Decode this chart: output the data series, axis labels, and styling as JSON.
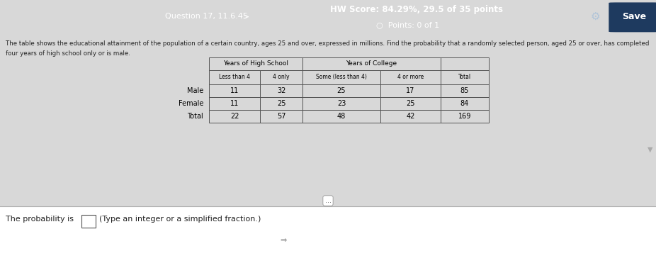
{
  "hw_score_text": "HW Score: 84.29%, 29.5 of 35 points",
  "points_text": "Points: 0 of 1",
  "question_text": "Question 17, 11.6.45",
  "save_text": "Save",
  "main_text_line1": "The table shows the educational attainment of the population of a certain country, ages 25 and over, expressed in millions. Find the probability that a randomly selected person, aged 25 or over, has completed",
  "main_text_line2": "four years of high school only or is male.",
  "prob_text": "The probability is",
  "input_hint": "(Type an integer or a simplified fraction.)",
  "col_headers_level1": [
    "Years of High School",
    "Years of College"
  ],
  "col_headers_level2": [
    "Less than 4",
    "4 only",
    "Some (less than 4)",
    "4 or more",
    "Total"
  ],
  "row_labels": [
    "Male",
    "Female",
    "Total"
  ],
  "table_data": [
    [
      11,
      32,
      25,
      17,
      85
    ],
    [
      11,
      25,
      23,
      25,
      84
    ],
    [
      22,
      57,
      48,
      42,
      169
    ]
  ],
  "top_bar_color": "#3d6b9e",
  "top_bar_text_color": "#ffffff",
  "page_bg": "#d8d8d8",
  "content_bg": "#e8e8e8",
  "bottom_section_bg": "#ffffff",
  "save_btn_color": "#1e3a5f",
  "text_color": "#222222",
  "table_line_color": "#555555"
}
